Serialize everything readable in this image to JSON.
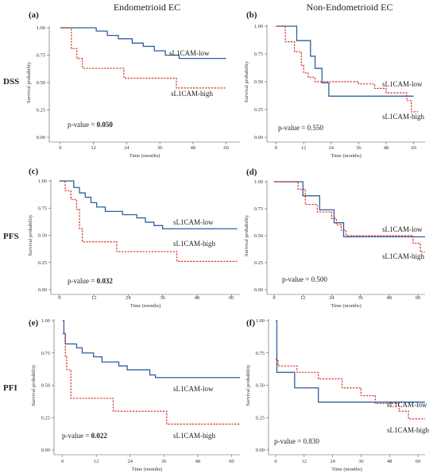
{
  "figure": {
    "col_titles": [
      "Endometrioid EC",
      "Non-Endometrioid  EC"
    ],
    "row_labels": [
      "DSS",
      "PFS",
      "PFI"
    ]
  },
  "colors": {
    "low": "#2f5f9e",
    "high": "#d9281e"
  },
  "chart_data": [
    {
      "type": "line",
      "panel": "(a)",
      "row": "DSS",
      "column": "Endometrioid EC",
      "xlabel": "Time (months)",
      "ylabel": "Survival probability",
      "xlim": [
        -4,
        65
      ],
      "ylim": [
        0,
        1
      ],
      "xticks": [
        0,
        12,
        24,
        36,
        48,
        60
      ],
      "yticks": [
        "0.00",
        "0.25",
        "0.50",
        "0.75",
        "1.00"
      ],
      "pvalue_prefix": "p-value = ",
      "pvalue": "0.050",
      "pvalue_bold": true,
      "legend": [
        {
          "name": "sL1CAM-low"
        },
        {
          "name": "sL1CAM-high"
        }
      ],
      "series": [
        {
          "name": "sL1CAM-low",
          "style": "solid",
          "steps": [
            [
              0,
              1.0
            ],
            [
              13,
              0.97
            ],
            [
              17,
              0.93
            ],
            [
              21,
              0.9
            ],
            [
              26,
              0.86
            ],
            [
              30,
              0.83
            ],
            [
              34,
              0.79
            ],
            [
              38,
              0.75
            ],
            [
              43,
              0.72
            ],
            [
              60,
              0.72
            ]
          ]
        },
        {
          "name": "sL1CAM-high",
          "style": "dashed",
          "steps": [
            [
              0,
              1.0
            ],
            [
              4,
              0.81
            ],
            [
              6,
              0.72
            ],
            [
              8,
              0.63
            ],
            [
              23,
              0.54
            ],
            [
              42,
              0.45
            ],
            [
              60,
              0.45
            ]
          ]
        }
      ]
    },
    {
      "type": "line",
      "panel": "(b)",
      "row": "DSS",
      "column": "Non-Endometrioid EC",
      "xlabel": "Time (months)",
      "ylabel": "Survival probability",
      "xlim": [
        -4,
        65
      ],
      "ylim": [
        0,
        1
      ],
      "xticks": [
        0,
        12,
        24,
        36,
        48,
        60
      ],
      "yticks": [
        "0.00",
        "0.25",
        "0.50",
        "0.75",
        "1.00"
      ],
      "pvalue_prefix": "p-value = ",
      "pvalue": "0.550",
      "pvalue_bold": false,
      "legend": [
        {
          "name": "sL1CAM-low"
        },
        {
          "name": "sL1CAM-high"
        }
      ],
      "series": [
        {
          "name": "sL1CAM-low",
          "style": "solid",
          "steps": [
            [
              0,
              1.0
            ],
            [
              9,
              0.87
            ],
            [
              15,
              0.73
            ],
            [
              17,
              0.62
            ],
            [
              20,
              0.49
            ],
            [
              23,
              0.37
            ],
            [
              60,
              0.37
            ]
          ]
        },
        {
          "name": "sL1CAM-high",
          "style": "dashed",
          "steps": [
            [
              0,
              1.0
            ],
            [
              4,
              0.86
            ],
            [
              8,
              0.77
            ],
            [
              11,
              0.65
            ],
            [
              12,
              0.58
            ],
            [
              14,
              0.54
            ],
            [
              17,
              0.5
            ],
            [
              36,
              0.48
            ],
            [
              43,
              0.44
            ],
            [
              48,
              0.4
            ],
            [
              57,
              0.33
            ],
            [
              59,
              0.23
            ],
            [
              62,
              0.23
            ]
          ]
        }
      ]
    },
    {
      "type": "line",
      "panel": "(c)",
      "row": "PFS",
      "column": "Endometrioid EC",
      "xlabel": "Time (months)",
      "ylabel": "Survival probability",
      "xlim": [
        -3,
        63
      ],
      "ylim": [
        0,
        1
      ],
      "xticks": [
        0,
        12,
        24,
        36,
        48,
        60
      ],
      "yticks": [
        "0.00",
        "0.25",
        "0.50",
        "0.75",
        "1.00"
      ],
      "pvalue_prefix": "p-value = ",
      "pvalue": "0.032",
      "pvalue_bold": true,
      "legend": [
        {
          "name": "sL1CAM-low"
        },
        {
          "name": "sL1CAM-high"
        }
      ],
      "series": [
        {
          "name": "sL1CAM-low",
          "style": "solid",
          "steps": [
            [
              0,
              1.0
            ],
            [
              5,
              0.94
            ],
            [
              7,
              0.89
            ],
            [
              9,
              0.85
            ],
            [
              11,
              0.8
            ],
            [
              13,
              0.76
            ],
            [
              16,
              0.72
            ],
            [
              22,
              0.69
            ],
            [
              27,
              0.66
            ],
            [
              30,
              0.62
            ],
            [
              33,
              0.59
            ],
            [
              36,
              0.56
            ],
            [
              62,
              0.56
            ]
          ]
        },
        {
          "name": "sL1CAM-high",
          "style": "dashed",
          "steps": [
            [
              0,
              1.0
            ],
            [
              2,
              0.91
            ],
            [
              4,
              0.83
            ],
            [
              6,
              0.74
            ],
            [
              7,
              0.56
            ],
            [
              8,
              0.44
            ],
            [
              20,
              0.35
            ],
            [
              41,
              0.26
            ],
            [
              62,
              0.26
            ]
          ]
        }
      ]
    },
    {
      "type": "line",
      "panel": "(d)",
      "row": "PFS",
      "column": "Non-Endometrioid EC",
      "xlabel": "Time (months)",
      "ylabel": "Survival probability",
      "xlim": [
        -3,
        63
      ],
      "ylim": [
        0,
        1
      ],
      "xticks": [
        0,
        12,
        24,
        36,
        48,
        60
      ],
      "yticks": [
        "0.00",
        "0.25",
        "0.50",
        "0.75",
        "1.00"
      ],
      "pvalue_prefix": "p-value = ",
      "pvalue": "0.500",
      "pvalue_bold": false,
      "legend": [
        {
          "name": "sL1CAM-low"
        },
        {
          "name": "sL1CAM-high"
        }
      ],
      "series": [
        {
          "name": "sL1CAM-low",
          "style": "solid",
          "steps": [
            [
              0,
              1.0
            ],
            [
              12,
              0.87
            ],
            [
              19,
              0.74
            ],
            [
              25,
              0.62
            ],
            [
              29,
              0.49
            ],
            [
              63,
              0.49
            ]
          ]
        },
        {
          "name": "sL1CAM-high",
          "style": "dashed",
          "steps": [
            [
              0,
              1.0
            ],
            [
              10,
              0.93
            ],
            [
              13,
              0.79
            ],
            [
              18,
              0.72
            ],
            [
              24,
              0.66
            ],
            [
              26,
              0.6
            ],
            [
              28,
              0.55
            ],
            [
              30,
              0.5
            ],
            [
              58,
              0.43
            ],
            [
              61,
              0.35
            ],
            [
              63,
              0.35
            ]
          ]
        }
      ]
    },
    {
      "type": "line",
      "panel": "(e)",
      "row": "PFI",
      "column": "Endometrioid EC",
      "xlabel": "Time (months)",
      "ylabel": "Survival probability",
      "xlim": [
        -3,
        63
      ],
      "ylim": [
        0,
        1
      ],
      "xticks": [
        0,
        12,
        24,
        36,
        48,
        60
      ],
      "yticks": [
        "0.00",
        "0.25",
        "0.50",
        "0.75",
        "1.00"
      ],
      "pvalue_prefix": "p-value = ",
      "pvalue": "0.022",
      "pvalue_bold": true,
      "legend": [
        {
          "name": "sL1CAM-low"
        },
        {
          "name": "sL1CAM-high"
        }
      ],
      "series": [
        {
          "name": "sL1CAM-low",
          "style": "solid",
          "steps": [
            [
              0,
              1.0
            ],
            [
              0.5,
              0.9
            ],
            [
              1,
              0.82
            ],
            [
              5,
              0.79
            ],
            [
              7,
              0.75
            ],
            [
              11,
              0.72
            ],
            [
              14,
              0.68
            ],
            [
              20,
              0.65
            ],
            [
              23,
              0.62
            ],
            [
              31,
              0.58
            ],
            [
              33,
              0.56
            ],
            [
              63,
              0.56
            ]
          ]
        },
        {
          "name": "sL1CAM-high",
          "style": "dashed",
          "steps": [
            [
              0,
              0.9
            ],
            [
              1,
              0.72
            ],
            [
              1.5,
              0.62
            ],
            [
              3,
              0.4
            ],
            [
              18,
              0.3
            ],
            [
              37,
              0.2
            ],
            [
              63,
              0.2
            ]
          ]
        }
      ]
    },
    {
      "type": "line",
      "panel": "(f)",
      "row": "PFI",
      "column": "Non-Endometrioid EC",
      "xlabel": "Time (months)",
      "ylabel": "Survival probability",
      "xlim": [
        -3,
        63
      ],
      "ylim": [
        0,
        1
      ],
      "xticks": [
        0,
        12,
        24,
        36,
        48,
        60
      ],
      "yticks": [
        "0.00",
        "0.25",
        "0.50",
        "0.75",
        "1.00"
      ],
      "pvalue_prefix": "p-value = ",
      "pvalue": "0.830",
      "pvalue_bold": false,
      "legend": [
        {
          "name": "sL1CAM-low"
        },
        {
          "name": "sL1CAM-high"
        }
      ],
      "series": [
        {
          "name": "sL1CAM-low",
          "style": "solid",
          "steps": [
            [
              0,
              1.0
            ],
            [
              0.5,
              0.6
            ],
            [
              8,
              0.48
            ],
            [
              18,
              0.37
            ],
            [
              63,
              0.37
            ]
          ]
        },
        {
          "name": "sL1CAM-high",
          "style": "dashed",
          "steps": [
            [
              0,
              0.7
            ],
            [
              1,
              0.65
            ],
            [
              9,
              0.6
            ],
            [
              18,
              0.55
            ],
            [
              28,
              0.48
            ],
            [
              36,
              0.42
            ],
            [
              42,
              0.36
            ],
            [
              52,
              0.3
            ],
            [
              56,
              0.24
            ],
            [
              63,
              0.24
            ]
          ]
        }
      ]
    }
  ]
}
